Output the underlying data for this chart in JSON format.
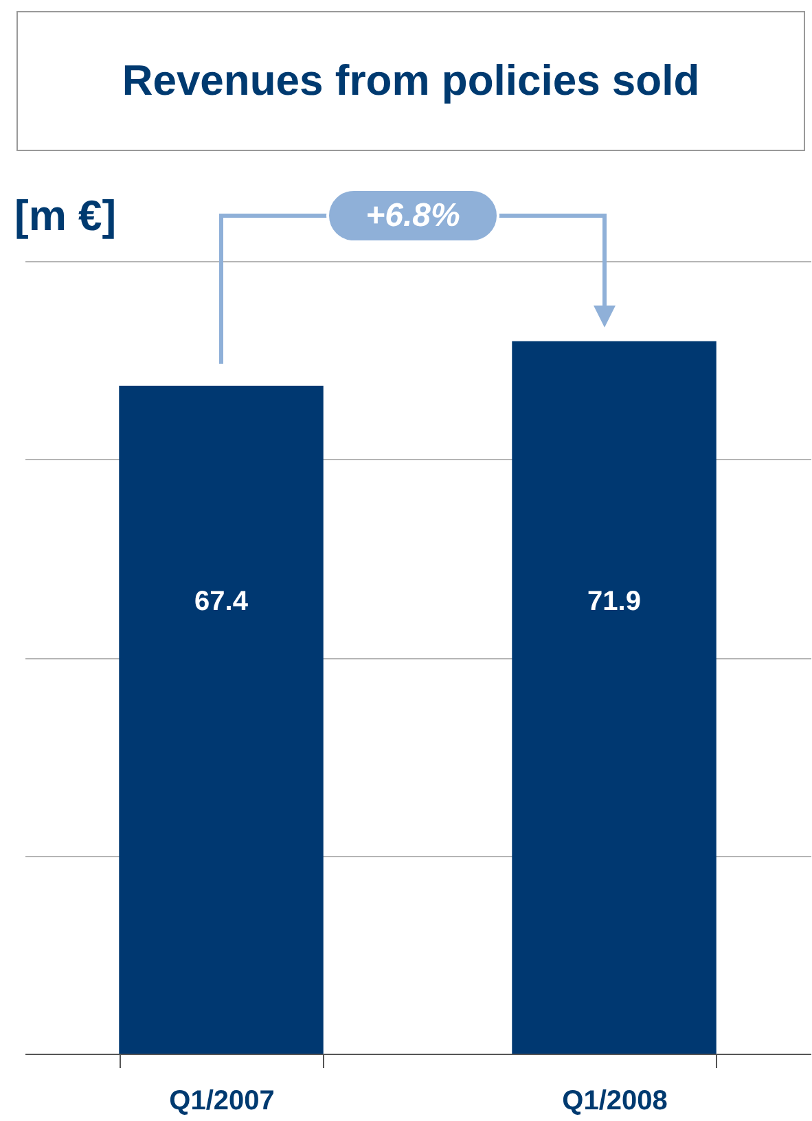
{
  "chart_data": {
    "type": "bar",
    "title": "Revenues from policies sold",
    "ylabel": "[m €]",
    "categories": [
      "Q1/2007",
      "Q1/2008"
    ],
    "values": [
      67.4,
      71.9
    ],
    "color": "#003871",
    "ylim": [
      0,
      80
    ],
    "yticks": [
      {
        "value": 20,
        "label": null
      },
      {
        "value": 40,
        "label": null
      },
      {
        "value": 60,
        "label": null
      },
      {
        "value": 80,
        "label": null
      }
    ],
    "tick_labels": "x",
    "grid": "y",
    "data_labels": true,
    "annotations": [
      "+6.8%"
    ]
  }
}
